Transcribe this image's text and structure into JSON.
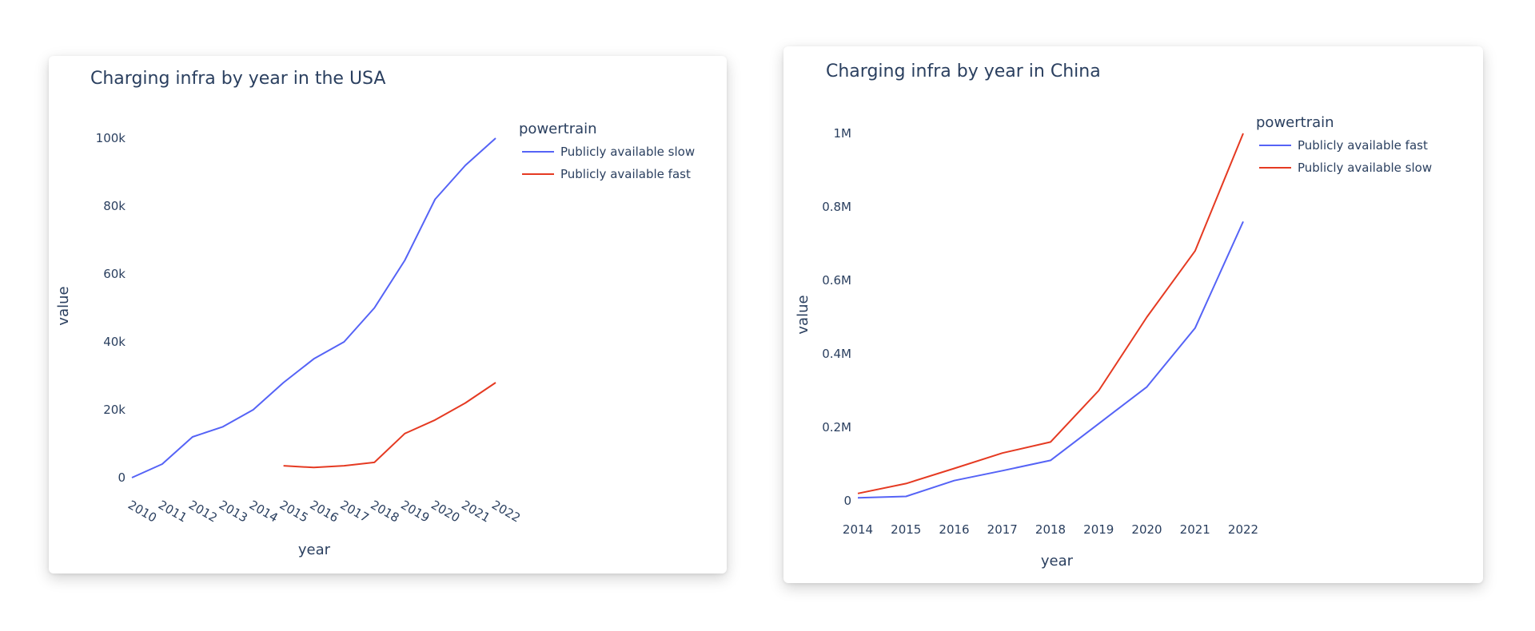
{
  "colors": {
    "blue": "#5563f6",
    "red": "#e53a22"
  },
  "chart_data": [
    {
      "type": "line",
      "title": "Charging infra by year in the USA",
      "xlabel": "year",
      "ylabel": "value",
      "x": [
        2010,
        2011,
        2012,
        2013,
        2014,
        2015,
        2016,
        2017,
        2018,
        2019,
        2020,
        2021,
        2022
      ],
      "x_tick_labels": [
        "2010",
        "2011",
        "2012",
        "2013",
        "2014",
        "2015",
        "2016",
        "2017",
        "2018",
        "2019",
        "2020",
        "2021",
        "2022"
      ],
      "y_ticks": [
        0,
        20000,
        40000,
        60000,
        80000,
        100000
      ],
      "y_tick_labels": [
        "0",
        "20k",
        "40k",
        "60k",
        "80k",
        "100k"
      ],
      "ylim": [
        0,
        100000
      ],
      "grid": false,
      "legend": {
        "title": "powertrain",
        "placement": "top-right"
      },
      "series": [
        {
          "name": "Publicly available slow",
          "color": "#5563f6",
          "x": [
            2010,
            2011,
            2012,
            2013,
            2014,
            2015,
            2016,
            2017,
            2018,
            2019,
            2020,
            2021,
            2022
          ],
          "values": [
            0,
            4000,
            12000,
            15000,
            20000,
            28000,
            35000,
            40000,
            50000,
            64000,
            82000,
            92000,
            100000
          ]
        },
        {
          "name": "Publicly available fast",
          "color": "#e53a22",
          "x": [
            2015,
            2016,
            2017,
            2018,
            2019,
            2020,
            2021,
            2022
          ],
          "values": [
            3500,
            3000,
            3500,
            4500,
            13000,
            17000,
            22000,
            28000
          ]
        }
      ]
    },
    {
      "type": "line",
      "title": "Charging infra by year in China",
      "xlabel": "year",
      "ylabel": "value",
      "x": [
        2014,
        2015,
        2016,
        2017,
        2018,
        2019,
        2020,
        2021,
        2022
      ],
      "x_tick_labels": [
        "2014",
        "2015",
        "2016",
        "2017",
        "2018",
        "2019",
        "2020",
        "2021",
        "2022"
      ],
      "y_ticks": [
        0,
        200000,
        400000,
        600000,
        800000,
        1000000
      ],
      "y_tick_labels": [
        "0",
        "0.2M",
        "0.4M",
        "0.6M",
        "0.8M",
        "1M"
      ],
      "ylim": [
        0,
        1000000
      ],
      "grid": false,
      "legend": {
        "title": "powertrain",
        "placement": "top-right"
      },
      "series": [
        {
          "name": "Publicly available fast",
          "color": "#5563f6",
          "x": [
            2014,
            2015,
            2016,
            2017,
            2018,
            2019,
            2020,
            2021,
            2022
          ],
          "values": [
            8000,
            12000,
            55000,
            82000,
            110000,
            210000,
            310000,
            470000,
            760000
          ]
        },
        {
          "name": "Publicly available slow",
          "color": "#e53a22",
          "x": [
            2014,
            2015,
            2016,
            2017,
            2018,
            2019,
            2020,
            2021,
            2022
          ],
          "values": [
            20000,
            47000,
            88000,
            130000,
            160000,
            300000,
            500000,
            680000,
            1000000
          ]
        }
      ]
    }
  ]
}
